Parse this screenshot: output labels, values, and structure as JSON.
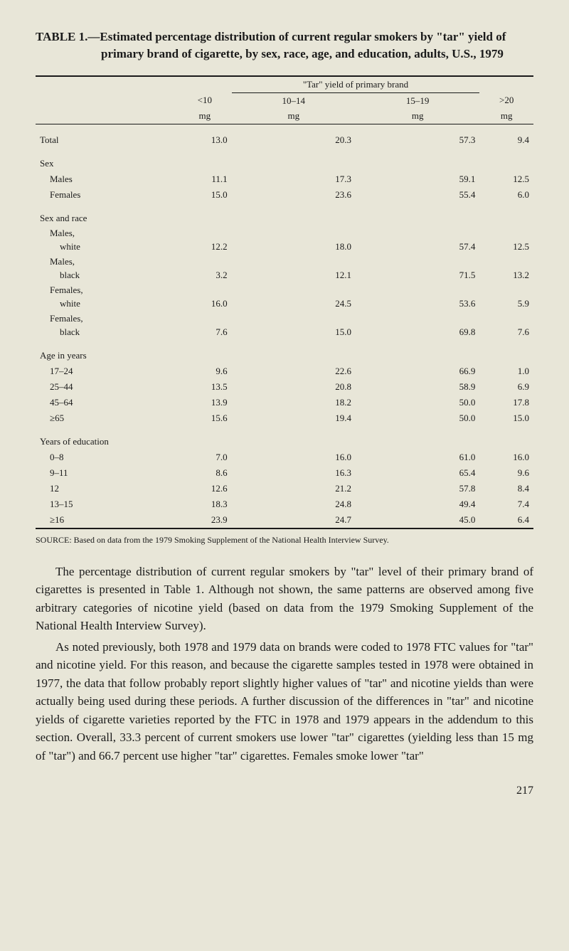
{
  "page_number": "217",
  "table_title_prefix": "TABLE 1.—",
  "table_title": "Estimated percentage distribution of current regular smokers by \"tar\" yield of primary brand of cigarette, by sex, race, age, and education, adults, U.S., 1979",
  "spanner_header": "\"Tar\" yield of primary brand",
  "col_headers": [
    {
      "top": "<10",
      "bottom": "mg"
    },
    {
      "top": "10–14",
      "bottom": "mg"
    },
    {
      "top": "15–19",
      "bottom": "mg"
    },
    {
      "top": ">20",
      "bottom": "mg"
    }
  ],
  "total_row": {
    "label": "Total",
    "v": [
      "13.0",
      "20.3",
      "57.3",
      "9.4"
    ]
  },
  "sections": [
    {
      "header": "Sex",
      "rows": [
        {
          "label": "Males",
          "indent": true,
          "v": [
            "11.1",
            "17.3",
            "59.1",
            "12.5"
          ]
        },
        {
          "label": "Females",
          "indent": true,
          "v": [
            "15.0",
            "23.6",
            "55.4",
            "6.0"
          ]
        }
      ]
    },
    {
      "header": "Sex and race",
      "rows": [
        {
          "label": "Males,",
          "indent": true,
          "sub": true,
          "v": [
            "",
            "",
            "",
            ""
          ]
        },
        {
          "label": "white",
          "indent2": true,
          "v": [
            "12.2",
            "18.0",
            "57.4",
            "12.5"
          ]
        },
        {
          "label": "Males,",
          "indent": true,
          "sub": true,
          "v": [
            "",
            "",
            "",
            ""
          ]
        },
        {
          "label": "black",
          "indent2": true,
          "v": [
            "3.2",
            "12.1",
            "71.5",
            "13.2"
          ]
        },
        {
          "label": "Females,",
          "indent": true,
          "sub": true,
          "v": [
            "",
            "",
            "",
            ""
          ]
        },
        {
          "label": "white",
          "indent2": true,
          "v": [
            "16.0",
            "24.5",
            "53.6",
            "5.9"
          ]
        },
        {
          "label": "Females,",
          "indent": true,
          "sub": true,
          "v": [
            "",
            "",
            "",
            ""
          ]
        },
        {
          "label": "black",
          "indent2": true,
          "v": [
            "7.6",
            "15.0",
            "69.8",
            "7.6"
          ]
        }
      ]
    },
    {
      "header": "Age in years",
      "rows": [
        {
          "label": "17–24",
          "indent": true,
          "v": [
            "9.6",
            "22.6",
            "66.9",
            "1.0"
          ]
        },
        {
          "label": "25–44",
          "indent": true,
          "v": [
            "13.5",
            "20.8",
            "58.9",
            "6.9"
          ]
        },
        {
          "label": "45–64",
          "indent": true,
          "v": [
            "13.9",
            "18.2",
            "50.0",
            "17.8"
          ]
        },
        {
          "label": "≥65",
          "indent": true,
          "v": [
            "15.6",
            "19.4",
            "50.0",
            "15.0"
          ]
        }
      ]
    },
    {
      "header": "Years of education",
      "rows": [
        {
          "label": "0–8",
          "indent": true,
          "v": [
            "7.0",
            "16.0",
            "61.0",
            "16.0"
          ]
        },
        {
          "label": "9–11",
          "indent": true,
          "v": [
            "8.6",
            "16.3",
            "65.4",
            "9.6"
          ]
        },
        {
          "label": "12",
          "indent": true,
          "v": [
            "12.6",
            "21.2",
            "57.8",
            "8.4"
          ]
        },
        {
          "label": "13–15",
          "indent": true,
          "v": [
            "18.3",
            "24.8",
            "49.4",
            "7.4"
          ]
        },
        {
          "label": "≥16",
          "indent": true,
          "v": [
            "23.9",
            "24.7",
            "45.0",
            "6.4"
          ]
        }
      ]
    }
  ],
  "source_note": "SOURCE: Based on data from the 1979 Smoking Supplement of the National Health Interview Survey.",
  "paragraphs": [
    "The percentage distribution of current regular smokers by \"tar\" level of their primary brand of cigarettes is presented in Table 1. Although not shown, the same patterns are observed among five arbitrary categories of nicotine yield (based on data from the 1979 Smoking Supplement of the National Health Interview Survey).",
    "As noted previously, both 1978 and 1979 data on brands were coded to 1978 FTC values for \"tar\" and nicotine yield. For this reason, and because the cigarette samples tested in 1978 were obtained in 1977, the data that follow probably report slightly higher values of \"tar\" and nicotine yields than were actually being used during these periods. A further discussion of the differences in \"tar\" and nicotine yields of cigarette varieties reported by the FTC in 1978 and 1979 appears in the addendum to this section. Overall, 33.3 percent of current smokers use lower \"tar\" cigarettes (yielding less than 15 mg of \"tar\") and 66.7 percent use higher \"tar\" cigarettes. Females smoke lower \"tar\""
  ]
}
